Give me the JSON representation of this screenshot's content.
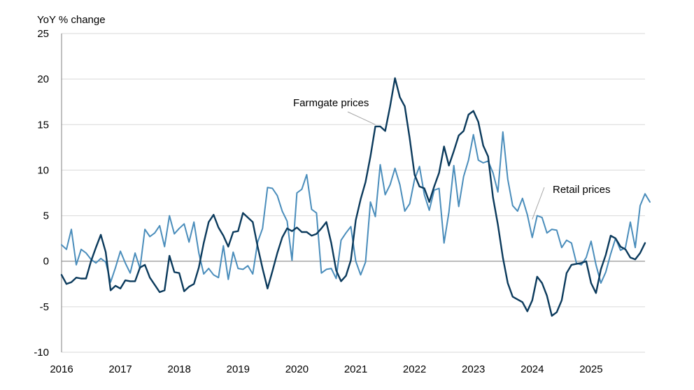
{
  "chart_data": {
    "type": "line",
    "title": "",
    "ylabel": "YoY % change",
    "xlabel": "",
    "ylim": [
      -10,
      25
    ],
    "yticks": [
      25,
      20,
      15,
      10,
      5,
      0,
      -5,
      -10
    ],
    "xticks": [
      "2016",
      "2017",
      "2018",
      "2019",
      "2020",
      "2021",
      "2022",
      "2023",
      "2024",
      "2025"
    ],
    "x_start": "2016-01",
    "x_step": "month",
    "grid": "horizontal",
    "colors": {
      "farmgate": "#0b3a5c",
      "retail": "#4a8dbb",
      "grid": "#d9d9d9",
      "axis": "#808080"
    },
    "annotations": [
      {
        "series": "farmgate",
        "text": "Farmgate prices",
        "point": [
          "2021-05",
          15.0
        ]
      },
      {
        "series": "retail",
        "text": "Retail prices",
        "point": [
          "2024-01",
          4.6
        ]
      }
    ],
    "series": [
      {
        "key": "farmgate",
        "name": "Farmgate prices",
        "values": [
          -1.5,
          -2.5,
          -2.3,
          -1.8,
          -1.9,
          -1.9,
          0.0,
          1.5,
          2.9,
          1.0,
          -3.2,
          -2.7,
          -3.0,
          -2.1,
          -2.2,
          -2.2,
          -0.7,
          -0.4,
          -1.8,
          -2.6,
          -3.4,
          -3.2,
          0.6,
          -1.2,
          -1.3,
          -3.3,
          -2.8,
          -2.5,
          -0.7,
          2.0,
          4.3,
          5.1,
          3.7,
          2.8,
          1.6,
          3.2,
          3.3,
          5.3,
          4.8,
          4.3,
          1.6,
          -0.8,
          -3.0,
          -1.1,
          0.9,
          2.6,
          3.6,
          3.3,
          3.7,
          3.2,
          3.2,
          2.8,
          3.0,
          3.6,
          4.3,
          2.0,
          -1.0,
          -2.2,
          -1.6,
          0.1,
          4.5,
          6.8,
          8.7,
          11.5,
          14.8,
          14.8,
          14.3,
          17.0,
          20.1,
          18.0,
          17.0,
          13.5,
          9.5,
          8.2,
          8.0,
          6.5,
          8.2,
          9.7,
          12.6,
          10.5,
          12.1,
          13.8,
          14.3,
          16.1,
          16.5,
          15.3,
          12.7,
          11.5,
          7.0,
          4.0,
          0.4,
          -2.4,
          -3.9,
          -4.2,
          -4.5,
          -5.5,
          -4.3,
          -1.7,
          -2.4,
          -3.8,
          -6.0,
          -5.6,
          -4.3,
          -1.3,
          -0.4,
          -0.3,
          -0.2,
          0.0,
          -2.4,
          -3.5,
          -0.9,
          0.7,
          2.8,
          2.5,
          1.6,
          1.3,
          0.4,
          0.2,
          0.9,
          2.0
        ]
      },
      {
        "key": "retail",
        "name": "Retail prices",
        "values": [
          1.8,
          1.3,
          3.5,
          -0.4,
          1.3,
          0.9,
          0.2,
          -0.2,
          0.3,
          -0.1,
          -2.3,
          -0.7,
          1.1,
          -0.2,
          -1.3,
          0.9,
          -0.8,
          3.5,
          2.7,
          3.1,
          3.9,
          1.6,
          5.0,
          3.0,
          3.6,
          4.1,
          2.1,
          4.3,
          0.9,
          -1.4,
          -0.8,
          -1.5,
          -1.8,
          1.7,
          -2.0,
          1.0,
          -0.8,
          -0.9,
          -0.5,
          -1.4,
          2.1,
          3.6,
          8.1,
          8.0,
          7.2,
          5.5,
          4.4,
          0.1,
          7.5,
          7.9,
          9.5,
          5.7,
          5.3,
          -1.3,
          -0.9,
          -0.8,
          -1.9,
          2.3,
          3.1,
          3.8,
          0.0,
          -1.5,
          -0.1,
          6.5,
          4.9,
          10.6,
          7.3,
          8.4,
          10.2,
          8.4,
          5.5,
          6.3,
          9.0,
          10.4,
          7.3,
          5.6,
          7.8,
          8.0,
          2.0,
          5.4,
          10.5,
          6.0,
          9.3,
          11.1,
          13.9,
          11.1,
          10.8,
          11.0,
          9.7,
          7.6,
          14.2,
          9.0,
          6.1,
          5.5,
          6.9,
          5.1,
          2.6,
          5.0,
          4.8,
          3.1,
          3.5,
          3.4,
          1.5,
          2.3,
          2.0,
          -0.2,
          -0.4,
          0.4,
          2.2,
          -0.4,
          -2.4,
          -1.2,
          0.8,
          2.5,
          1.2,
          1.5,
          4.3,
          1.5,
          6.1,
          7.4,
          6.5
        ]
      }
    ]
  }
}
